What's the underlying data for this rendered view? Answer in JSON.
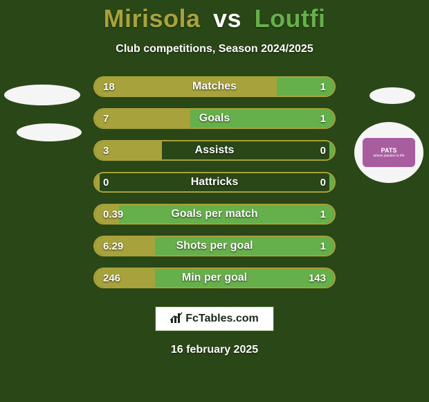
{
  "background_color": "#2a4817",
  "title": {
    "player1": "Mirisola",
    "vs": "vs",
    "player2": "Loutfi",
    "player1_color": "#a7a23c",
    "vs_color": "#ffffff",
    "player2_color": "#66b04b",
    "fontsize": 36
  },
  "subtitle": "Club competitions, Season 2024/2025",
  "bar_style": {
    "height": 30,
    "gap": 16,
    "radius": 15,
    "left_fill": "#a7a23c",
    "right_fill": "#66b04b",
    "track_border": "#a7a23c",
    "label_fontsize": 16,
    "value_fontsize": 15,
    "text_color": "#ffffff"
  },
  "bars": [
    {
      "label": "Matches",
      "left": "18",
      "right": "1",
      "left_pct": 76,
      "right_pct": 24
    },
    {
      "label": "Goals",
      "left": "7",
      "right": "1",
      "left_pct": 40,
      "right_pct": 60
    },
    {
      "label": "Assists",
      "left": "3",
      "right": "0",
      "left_pct": 28,
      "right_pct": 2
    },
    {
      "label": "Hattricks",
      "left": "0",
      "right": "0",
      "left_pct": 2,
      "right_pct": 2
    },
    {
      "label": "Goals per match",
      "left": "0.39",
      "right": "1",
      "left_pct": 10,
      "right_pct": 90
    },
    {
      "label": "Shots per goal",
      "left": "6.29",
      "right": "1",
      "left_pct": 25,
      "right_pct": 75
    },
    {
      "label": "Min per goal",
      "left": "246",
      "right": "143",
      "left_pct": 25,
      "right_pct": 75
    }
  ],
  "logos": {
    "right_badge_text_top": "PATS",
    "right_badge_text_bottom": "where passion is life",
    "right_badge_bg": "#a85d9e"
  },
  "footer": {
    "site": "FcTables.com",
    "site_box_bg": "#ffffff",
    "site_box_border": "#4a6b2a",
    "date": "16 february 2025"
  }
}
